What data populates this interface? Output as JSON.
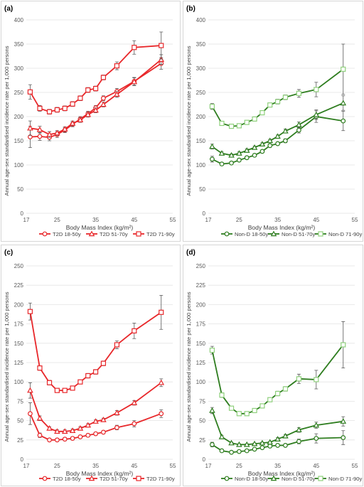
{
  "chart_data": [
    {
      "panel": "(a)",
      "type": "line",
      "xlabel": "Body Mass Index (kg/m²)",
      "ylabel": "Annual age-sex standardised incidence rate per 1,000 persons",
      "xlim": [
        17,
        55
      ],
      "xticks": [
        17,
        25,
        35,
        45,
        55
      ],
      "xtick_labels": [
        "17",
        "25",
        "35",
        "45",
        "55"
      ],
      "ylim": [
        0,
        400
      ],
      "yticks": [
        0,
        50,
        100,
        150,
        200,
        250,
        300,
        350,
        400
      ],
      "ytick_labels": [
        "0",
        "50",
        "100",
        "150",
        "200",
        "250",
        "300",
        "350",
        "400"
      ],
      "color": "#e8272a",
      "legend_position": "bottom",
      "x": [
        18,
        20.5,
        23,
        25,
        27,
        29,
        31,
        33,
        35,
        37,
        40.5,
        45,
        52
      ],
      "series": [
        {
          "name": "T2D 18-50y",
          "marker": "circle",
          "values": [
            158,
            159,
            157,
            163,
            172,
            184,
            195,
            206,
            218,
            238,
            252,
            273,
            310
          ],
          "err": [
            22,
            8,
            7,
            6,
            5,
            5,
            5,
            5,
            5,
            5,
            6,
            8,
            12
          ]
        },
        {
          "name": "T2D 51-70y",
          "marker": "triangle",
          "values": [
            176,
            173,
            163,
            166,
            174,
            186,
            193,
            204,
            213,
            225,
            246,
            272,
            318
          ],
          "err": [
            15,
            7,
            6,
            5,
            5,
            5,
            5,
            5,
            5,
            5,
            6,
            8,
            10
          ]
        },
        {
          "name": "T2D 71-90y",
          "marker": "square",
          "values": [
            251,
            217,
            210,
            214,
            217,
            226,
            238,
            255,
            258,
            281,
            305,
            343,
            347
          ],
          "err": [
            15,
            6,
            5,
            5,
            5,
            5,
            5,
            5,
            5,
            5,
            8,
            14,
            28
          ]
        }
      ]
    },
    {
      "panel": "(b)",
      "type": "line",
      "xlabel": "Body Mass Index (kg/m²)",
      "ylabel": "Annual age-sex standardised incidence rate per 1,000 persons",
      "xlim": [
        17,
        55
      ],
      "xticks": [
        17,
        25,
        35,
        45,
        55
      ],
      "xtick_labels": [
        "17",
        "25",
        "35",
        "45",
        "55"
      ],
      "ylim": [
        0,
        400
      ],
      "yticks": [
        0,
        50,
        100,
        150,
        200,
        250,
        300,
        350,
        400
      ],
      "ytick_labels": [
        "0",
        "50",
        "100",
        "150",
        "200",
        "250",
        "300",
        "350",
        "400"
      ],
      "color": "#2e7d1f",
      "legend_position": "bottom",
      "x": [
        18,
        20.5,
        23,
        25,
        27,
        29,
        31,
        33,
        35,
        37,
        40.5,
        45,
        52
      ],
      "series": [
        {
          "name": "Non-D 18-50y",
          "marker": "circle",
          "fill": "#ffffff",
          "stroke": "#2e7d1f",
          "values": [
            112,
            102,
            104,
            110,
            115,
            120,
            128,
            140,
            144,
            150,
            172,
            200,
            191
          ],
          "err": [
            6,
            3,
            3,
            3,
            3,
            3,
            3,
            3,
            3,
            4,
            6,
            12,
            20
          ]
        },
        {
          "name": "Non-D 51-70y",
          "marker": "triangle",
          "fill": "#ffffff",
          "stroke": "#2e7d1f",
          "values": [
            138,
            124,
            120,
            124,
            130,
            136,
            143,
            150,
            159,
            170,
            183,
            204,
            228
          ],
          "err": [
            5,
            3,
            3,
            3,
            3,
            3,
            3,
            3,
            3,
            4,
            6,
            10,
            15
          ]
        },
        {
          "name": "Non-D 71-90y",
          "marker": "square",
          "fill": "#ffffff",
          "stroke": "#8fd07c",
          "values": [
            221,
            186,
            180,
            181,
            188,
            195,
            208,
            224,
            231,
            240,
            248,
            256,
            298
          ],
          "err": [
            6,
            4,
            4,
            4,
            4,
            4,
            4,
            4,
            5,
            5,
            8,
            15,
            52
          ]
        }
      ]
    },
    {
      "panel": "(c)",
      "type": "line",
      "xlabel": "Body Mass Index (kg/m²)",
      "ylabel": "Annual age-sex standardised incidence rate per 1,000 persons",
      "xlim": [
        17,
        55
      ],
      "xticks": [
        17,
        25,
        35,
        45,
        55
      ],
      "xtick_labels": [
        "17",
        "25",
        "35",
        "45",
        "55"
      ],
      "ylim": [
        0,
        250
      ],
      "yticks": [
        0,
        25,
        50,
        75,
        100,
        125,
        150,
        175,
        200,
        225,
        250
      ],
      "ytick_labels": [
        "0",
        "25",
        "50",
        "75",
        "100",
        "125",
        "150",
        "175",
        "200",
        "225",
        "250"
      ],
      "color": "#e8272a",
      "legend_position": "bottom",
      "x": [
        18,
        20.5,
        23,
        25,
        27,
        29,
        31,
        33,
        35,
        37,
        40.5,
        45,
        52
      ],
      "series": [
        {
          "name": "T2D 18-50y",
          "marker": "circle",
          "values": [
            59,
            31,
            25,
            25,
            26,
            27,
            29,
            31,
            33,
            35,
            41,
            46,
            59
          ],
          "err": [
            14,
            3,
            2,
            2,
            2,
            2,
            2,
            2,
            2,
            2,
            3,
            4,
            5
          ]
        },
        {
          "name": "T2D 51-70y",
          "marker": "triangle",
          "values": [
            89,
            53,
            40,
            36,
            36,
            37,
            40,
            44,
            49,
            51,
            60,
            73,
            99
          ],
          "err": [
            10,
            3,
            2,
            2,
            2,
            2,
            2,
            2,
            2,
            2,
            3,
            3,
            5
          ]
        },
        {
          "name": "T2D 71-90y",
          "marker": "square",
          "values": [
            191,
            118,
            99,
            89,
            89,
            92,
            100,
            108,
            113,
            124,
            148,
            166,
            190
          ],
          "err": [
            11,
            3,
            3,
            2,
            2,
            2,
            2,
            3,
            3,
            3,
            5,
            10,
            22
          ]
        }
      ]
    },
    {
      "panel": "(d)",
      "type": "line",
      "xlabel": "Body Mass Index (kg/m²)",
      "ylabel": "Annual age-sex standardised incidence rate per 1,000 persons",
      "xlim": [
        17,
        55
      ],
      "xticks": [
        17,
        25,
        35,
        45,
        55
      ],
      "xtick_labels": [
        "17",
        "25",
        "35",
        "45",
        "55"
      ],
      "ylim": [
        0,
        250
      ],
      "yticks": [
        0,
        25,
        50,
        75,
        100,
        125,
        150,
        175,
        200,
        225,
        250
      ],
      "ytick_labels": [
        "0",
        "25",
        "50",
        "75",
        "100",
        "125",
        "150",
        "175",
        "200",
        "225",
        "250"
      ],
      "color": "#2e7d1f",
      "legend_position": "bottom",
      "x": [
        18,
        20.5,
        23,
        25,
        27,
        29,
        31,
        33,
        35,
        37,
        40.5,
        45,
        52
      ],
      "series": [
        {
          "name": "Non-D 18-50y",
          "marker": "circle",
          "fill": "#ffffff",
          "stroke": "#2e7d1f",
          "values": [
            19,
            11,
            9,
            10,
            11,
            13,
            15,
            17,
            18,
            18,
            23,
            27,
            28
          ],
          "err": [
            3,
            1,
            1,
            1,
            1,
            1,
            1,
            1,
            1,
            2,
            3,
            6,
            9
          ]
        },
        {
          "name": "Non-D 51-70y",
          "marker": "triangle",
          "fill": "#ffffff",
          "stroke": "#2e7d1f",
          "values": [
            63,
            29,
            21,
            19,
            19,
            20,
            21,
            22,
            26,
            30,
            38,
            44,
            49
          ],
          "err": [
            4,
            2,
            1,
            1,
            1,
            1,
            1,
            1,
            2,
            2,
            3,
            4,
            6
          ]
        },
        {
          "name": "Non-D 71-90y",
          "marker": "square",
          "fill": "#ffffff",
          "stroke": "#8fd07c",
          "values": [
            141,
            83,
            66,
            59,
            59,
            63,
            69,
            77,
            85,
            91,
            104,
            103,
            148
          ],
          "err": [
            5,
            3,
            2,
            2,
            2,
            2,
            2,
            2,
            3,
            3,
            6,
            12,
            30
          ]
        }
      ]
    }
  ]
}
